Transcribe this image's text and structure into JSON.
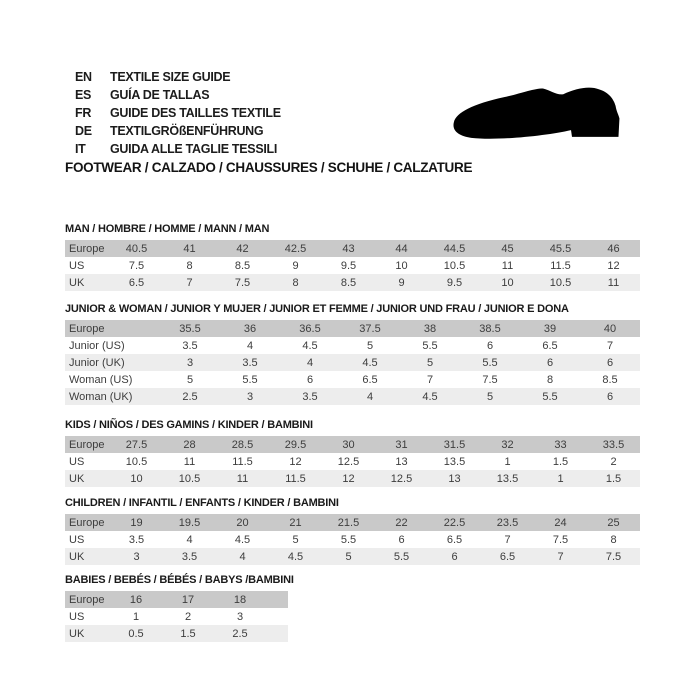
{
  "page": {
    "background": "#ffffff"
  },
  "header": {
    "languages": [
      {
        "code": "EN",
        "label": "TEXTILE SIZE GUIDE"
      },
      {
        "code": "ES",
        "label": "GUÍA DE TALLAS"
      },
      {
        "code": "FR",
        "label": "GUIDE DES TAILLES TEXTILE"
      },
      {
        "code": "DE",
        "label": "TEXTILGRÖßENFÜHRUNG"
      },
      {
        "code": "IT",
        "label": "GUIDA ALLE TAGLIE TESSILI"
      }
    ],
    "category_line": "FOOTWEAR / CALZADO / CHAUSSURES / SCHUHE / CALZATURE",
    "shoe_icon": "dress-shoe-silhouette",
    "shoe_color": "#000000"
  },
  "colors": {
    "europe_row_bg": "#c9c9c9",
    "alt_row_bg": "#ededed",
    "plain_row_bg": "#ffffff",
    "cell_text": "#3d3d3d",
    "title_text": "#1a1a1a"
  },
  "tables": [
    {
      "id": "man",
      "title": "MAN / HOMBRE / HOMME / MANN / MAN",
      "rows": [
        {
          "label": "Europe",
          "values": [
            "40.5",
            "41",
            "42",
            "42.5",
            "43",
            "44",
            "44.5",
            "45",
            "45.5",
            "46"
          ]
        },
        {
          "label": "US",
          "values": [
            "7.5",
            "8",
            "8.5",
            "9",
            "9.5",
            "10",
            "10.5",
            "11",
            "11.5",
            "12"
          ]
        },
        {
          "label": "UK",
          "values": [
            "6.5",
            "7",
            "7.5",
            "8",
            "8.5",
            "9",
            "9.5",
            "10",
            "10.5",
            "11"
          ]
        }
      ]
    },
    {
      "id": "junior-woman",
      "title": "JUNIOR & WOMAN / JUNIOR Y MUJER / JUNIOR ET FEMME / JUNIOR UND FRAU / JUNIOR E DONA",
      "rows": [
        {
          "label": "Europe",
          "values": [
            "35.5",
            "36",
            "36.5",
            "37.5",
            "38",
            "38.5",
            "39",
            "40"
          ]
        },
        {
          "label": "Junior (US)",
          "values": [
            "3.5",
            "4",
            "4.5",
            "5",
            "5.5",
            "6",
            "6.5",
            "7"
          ]
        },
        {
          "label": "Junior (UK)",
          "values": [
            "3",
            "3.5",
            "4",
            "4.5",
            "5",
            "5.5",
            "6",
            "6"
          ]
        },
        {
          "label": "Woman (US)",
          "values": [
            "5",
            "5.5",
            "6",
            "6.5",
            "7",
            "7.5",
            "8",
            "8.5"
          ]
        },
        {
          "label": "Woman (UK)",
          "values": [
            "2.5",
            "3",
            "3.5",
            "4",
            "4.5",
            "5",
            "5.5",
            "6"
          ]
        }
      ]
    },
    {
      "id": "kids",
      "title": "KIDS / NIÑOS / DES GAMINS / KINDER / BAMBINI",
      "rows": [
        {
          "label": "Europe",
          "values": [
            "27.5",
            "28",
            "28.5",
            "29.5",
            "30",
            "31",
            "31.5",
            "32",
            "33",
            "33.5"
          ]
        },
        {
          "label": "US",
          "values": [
            "10.5",
            "11",
            "11.5",
            "12",
            "12.5",
            "13",
            "13.5",
            "1",
            "1.5",
            "2"
          ]
        },
        {
          "label": "UK",
          "values": [
            "10",
            "10.5",
            "11",
            "11.5",
            "12",
            "12.5",
            "13",
            "13.5",
            "1",
            "1.5"
          ]
        }
      ]
    },
    {
      "id": "children",
      "title": "CHILDREN / INFANTIL / ENFANTS / KINDER / BAMBINI",
      "rows": [
        {
          "label": "Europe",
          "values": [
            "19",
            "19.5",
            "20",
            "21",
            "21.5",
            "22",
            "22.5",
            "23.5",
            "24",
            "25"
          ]
        },
        {
          "label": "US",
          "values": [
            "3.5",
            "4",
            "4.5",
            "5",
            "5.5",
            "6",
            "6.5",
            "7",
            "7.5",
            "8"
          ]
        },
        {
          "label": "UK",
          "values": [
            "3",
            "3.5",
            "4",
            "4.5",
            "5",
            "5.5",
            "6",
            "6.5",
            "7",
            "7.5"
          ]
        }
      ]
    },
    {
      "id": "babies",
      "title": "BABIES / BEBÉS / BÉBÉS / BABYS /BAMBINI",
      "rows": [
        {
          "label": "Europe",
          "values": [
            "16",
            "17",
            "18"
          ]
        },
        {
          "label": "US",
          "values": [
            "1",
            "2",
            "3"
          ]
        },
        {
          "label": "UK",
          "values": [
            "0.5",
            "1.5",
            "2.5"
          ]
        }
      ]
    }
  ]
}
